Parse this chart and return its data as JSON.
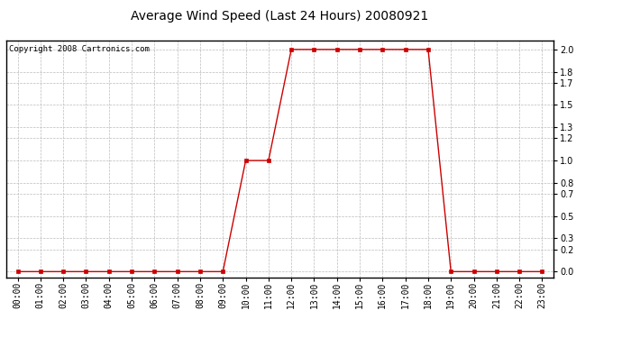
{
  "title": "Average Wind Speed (Last 24 Hours) 20080921",
  "copyright_text": "Copyright 2008 Cartronics.com",
  "x_labels": [
    "00:00",
    "01:00",
    "02:00",
    "03:00",
    "04:00",
    "05:00",
    "06:00",
    "07:00",
    "08:00",
    "09:00",
    "10:00",
    "11:00",
    "12:00",
    "13:00",
    "14:00",
    "15:00",
    "16:00",
    "17:00",
    "18:00",
    "19:00",
    "20:00",
    "21:00",
    "22:00",
    "23:00"
  ],
  "x_values": [
    0,
    1,
    2,
    3,
    4,
    5,
    6,
    7,
    8,
    9,
    10,
    11,
    12,
    13,
    14,
    15,
    16,
    17,
    18,
    19,
    20,
    21,
    22,
    23
  ],
  "y_values": [
    0,
    0,
    0,
    0,
    0,
    0,
    0,
    0,
    0,
    0,
    1.0,
    1.0,
    2.0,
    2.0,
    2.0,
    2.0,
    2.0,
    2.0,
    2.0,
    0.0,
    0.0,
    0.0,
    0.0,
    0.0
  ],
  "line_color": "#cc0000",
  "marker": "s",
  "marker_size": 2.5,
  "background_color": "#ffffff",
  "plot_bg_color": "#ffffff",
  "grid_color": "#bbbbbb",
  "grid_linestyle": "--",
  "yticks": [
    0.0,
    0.2,
    0.3,
    0.5,
    0.7,
    0.8,
    1.0,
    1.2,
    1.3,
    1.5,
    1.7,
    1.8,
    2.0
  ],
  "title_fontsize": 10,
  "axis_label_fontsize": 7,
  "copyright_fontsize": 6.5
}
